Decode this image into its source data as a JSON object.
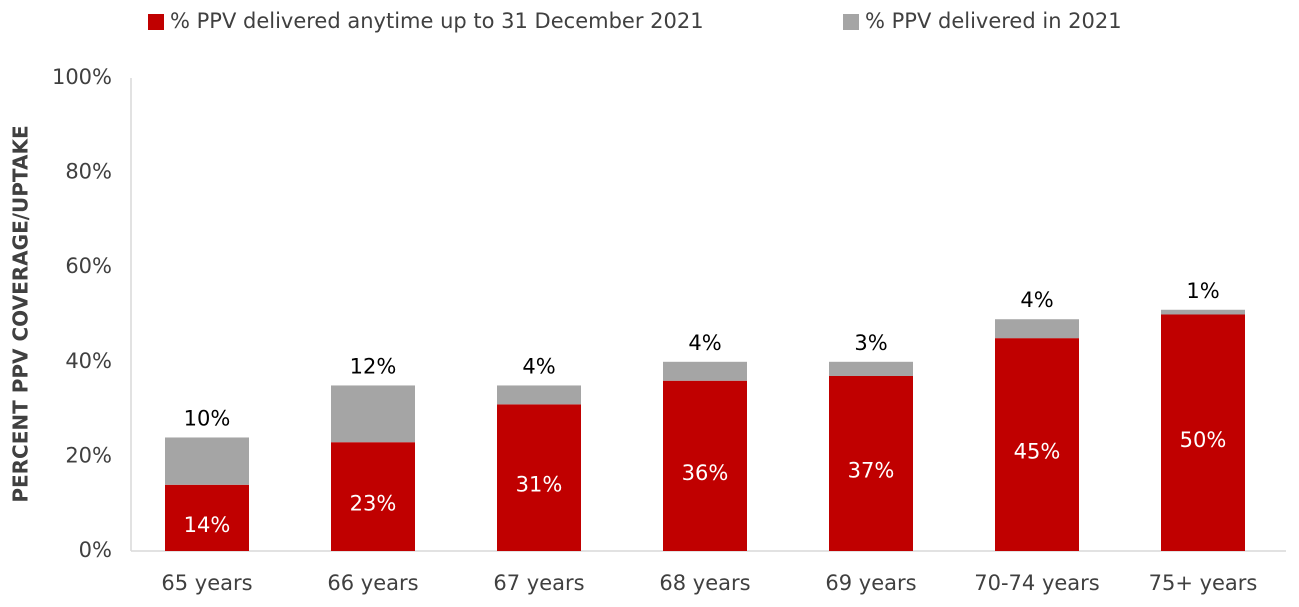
{
  "chart_data": {
    "type": "stacked_bar",
    "categories": [
      "65 years",
      "66 years",
      "67 years",
      "68 years",
      "69 years",
      "70-74 years",
      "75+ years"
    ],
    "series": [
      {
        "name": "% PPV delivered anytime up to 31 December 2021",
        "color": "#c00000",
        "values": [
          14,
          23,
          31,
          36,
          37,
          45,
          50
        ],
        "value_labels": [
          "14%",
          "23%",
          "31%",
          "36%",
          "37%",
          "45%",
          "50%"
        ]
      },
      {
        "name": "% PPV delivered in 2021",
        "color": "#a5a5a5",
        "values": [
          10,
          12,
          4,
          4,
          3,
          4,
          1
        ],
        "value_labels": [
          "10%",
          "12%",
          "4%",
          "4%",
          "3%",
          "4%",
          "1%"
        ]
      }
    ],
    "y_axis_label": "PERCENT PPV COVERAGE/UPTAKE",
    "ylim": [
      0,
      100
    ],
    "yticks": [
      {
        "value": 0,
        "label": "0%"
      },
      {
        "value": 20,
        "label": "20%"
      },
      {
        "value": 40,
        "label": "40%"
      },
      {
        "value": 60,
        "label": "60%"
      },
      {
        "value": 80,
        "label": "80%"
      },
      {
        "value": 100,
        "label": "100%"
      }
    ],
    "grid": false,
    "legend": "top"
  }
}
